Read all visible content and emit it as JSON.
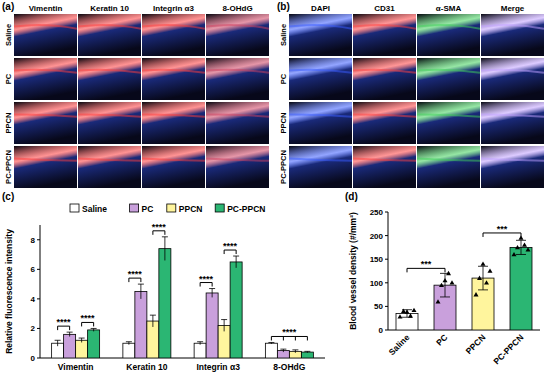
{
  "image_panels": [
    {
      "label": "(a)",
      "columns": [
        "Vimentin",
        "Keratin 10",
        "Integrin α3",
        "8-OHdG"
      ],
      "rows": [
        "Saline",
        "PC",
        "PPCN",
        "PC-PPCN"
      ]
    },
    {
      "label": "(b)",
      "columns": [
        "DAPI",
        "CD31",
        "α-SMA",
        "Merge"
      ],
      "rows": [
        "Saline",
        "PC",
        "PPCN",
        "PC-PPCN"
      ]
    }
  ],
  "chart_data": [
    {
      "type": "bar",
      "title": "(c)",
      "y_label": "Relative fluorescence intensity",
      "categories": [
        "Vimentin",
        "Keratin 10",
        "Integrin α3",
        "8-OHdG"
      ],
      "series": [
        {
          "name": "Saline",
          "color": "#ffffff",
          "values": [
            1.0,
            1.0,
            1.0,
            1.0
          ],
          "errors": [
            0.2,
            0.1,
            0.1,
            0.05
          ]
        },
        {
          "name": "PC",
          "color": "#c9a0dc",
          "values": [
            1.6,
            4.5,
            4.4,
            0.5
          ],
          "errors": [
            0.15,
            0.5,
            0.3,
            0.1
          ]
        },
        {
          "name": "PPCN",
          "color": "#fff59d",
          "values": [
            1.2,
            2.5,
            2.2,
            0.45
          ],
          "errors": [
            0.15,
            0.4,
            0.4,
            0.1
          ]
        },
        {
          "name": "PC-PPCN",
          "color": "#2bb673",
          "values": [
            1.9,
            7.4,
            6.5,
            0.4
          ],
          "errors": [
            0.1,
            0.8,
            0.4,
            0.05
          ]
        }
      ],
      "ylim": [
        0,
        9
      ],
      "yticks": [
        0,
        2,
        4,
        6,
        8
      ],
      "legend": "top",
      "annotations": [
        {
          "text": "****",
          "category": "Vimentin",
          "from": "Saline",
          "to": "PC"
        },
        {
          "text": "****",
          "category": "Vimentin",
          "from": "PPCN",
          "to": "PC-PPCN"
        },
        {
          "text": "****",
          "category": "Keratin 10",
          "from": "Saline",
          "to": "PC"
        },
        {
          "text": "****",
          "category": "Keratin 10",
          "from": "PPCN",
          "to": "PC-PPCN"
        },
        {
          "text": "****",
          "category": "Integrin α3",
          "from": "Saline",
          "to": "PC"
        },
        {
          "text": "****",
          "category": "Integrin α3",
          "from": "PPCN",
          "to": "PC-PPCN"
        },
        {
          "text": "****",
          "category": "8-OHdG",
          "from": "Saline",
          "to": [
            "PC",
            "PPCN",
            "PC-PPCN"
          ]
        }
      ]
    },
    {
      "type": "bar",
      "title": "(d)",
      "y_label": "Blood vessel density (#/mm²)",
      "categories": [
        "Saline",
        "PC",
        "PPCN",
        "PC-PPCN"
      ],
      "values": [
        35,
        95,
        110,
        175
      ],
      "errors": [
        8,
        25,
        25,
        15
      ],
      "points": [
        [
          28,
          40,
          38,
          30,
          42
        ],
        [
          60,
          95,
          105,
          120,
          100
        ],
        [
          75,
          110,
          140,
          100,
          125
        ],
        [
          160,
          175,
          195,
          180,
          170
        ]
      ],
      "colors": [
        "#ffffff",
        "#c9a0dc",
        "#fff59d",
        "#2bb673"
      ],
      "ylim": [
        0,
        250
      ],
      "yticks": [
        0,
        50,
        100,
        150,
        200,
        250
      ],
      "annotations": [
        {
          "text": "***",
          "from": "Saline",
          "to": "PC"
        },
        {
          "text": "***",
          "from": "PPCN",
          "to": "PC-PPCN"
        }
      ]
    }
  ]
}
